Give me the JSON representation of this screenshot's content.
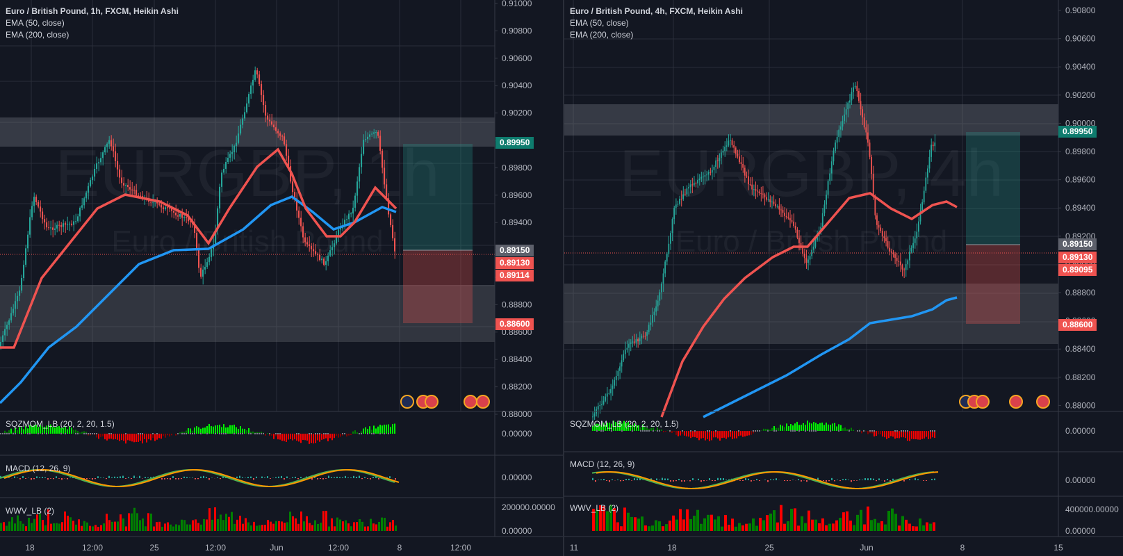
{
  "left": {
    "legend": {
      "title": "Euro / British Pound, 1h, FXCM, Heikin Ashi",
      "ema50": "EMA (50, close)",
      "ema200": "EMA (200, close)"
    },
    "watermark": {
      "symbol": "EURGBP, 1h",
      "name": "Euro / British Pound"
    },
    "price_axis": [
      "0.91000",
      "0.90800",
      "0.90600",
      "0.90400",
      "0.90200",
      "0.90000",
      "0.89800",
      "0.89600",
      "0.89400",
      "0.89200",
      "0.89000",
      "0.88800",
      "0.88600",
      "0.88400",
      "0.88200",
      "0.88000"
    ],
    "price_labels": [
      {
        "text": "0.89950",
        "bg": "#0e7c6e"
      },
      {
        "text": "0.89150",
        "bg": "#5d606b"
      },
      {
        "text": "0.89130",
        "bg": "#ef5350"
      },
      {
        "text": "0.89114",
        "bg": "#ef5350"
      },
      {
        "text": "0.88600",
        "bg": "#ef5350"
      }
    ],
    "time_axis": [
      "18",
      "12:00",
      "25",
      "12:00",
      "Jun",
      "12:00",
      "8",
      "12:00"
    ],
    "indicators": {
      "sqz": {
        "label": "SQZMOM_LB (20, 2, 20, 1.5)",
        "value": "0.00000"
      },
      "macd": {
        "label": "MACD (12, 26, 9)",
        "value": "0.00000"
      },
      "wwv": {
        "label": "WWV_LB (2)",
        "value_top": "200000.00000",
        "value_bottom": "0.00000"
      }
    }
  },
  "right": {
    "legend": {
      "title": "Euro / British Pound, 4h, FXCM, Heikin Ashi",
      "ema50": "EMA (50, close)",
      "ema200": "EMA (200, close)"
    },
    "watermark": {
      "symbol": "EURGBP, 4h",
      "name": "Euro / British Pound"
    },
    "price_axis": [
      "0.90800",
      "0.90600",
      "0.90400",
      "0.90200",
      "0.90000",
      "0.89800",
      "0.89600",
      "0.89400",
      "0.89200",
      "0.89000",
      "0.88800",
      "0.88600",
      "0.88400",
      "0.88200",
      "0.88000"
    ],
    "price_labels": [
      {
        "text": "0.89950",
        "bg": "#0e7c6e"
      },
      {
        "text": "0.89150",
        "bg": "#5d606b"
      },
      {
        "text": "0.89130",
        "bg": "#ef5350"
      },
      {
        "text": "0.89095",
        "bg": "#ef5350"
      },
      {
        "text": "0.88600",
        "bg": "#ef5350"
      }
    ],
    "time_axis": [
      "11",
      "18",
      "25",
      "Jun",
      "8",
      "15"
    ],
    "indicators": {
      "sqz": {
        "label": "SQZMOM_LB (20, 2, 20, 1.5)",
        "value": "0.00000"
      },
      "macd": {
        "label": "MACD (12, 26, 9)",
        "value": "0.00000"
      },
      "wwv": {
        "label": "WWV_LB (2)",
        "value_top": "400000.00000",
        "value_bottom": "0.00000"
      }
    }
  },
  "colors": {
    "bull": "#26a69a",
    "bear": "#ef5350",
    "ema50": "#ef5350",
    "ema200": "#2196f3",
    "bg": "#131722",
    "grid": "#2a2e39",
    "zone": "#787b86"
  }
}
